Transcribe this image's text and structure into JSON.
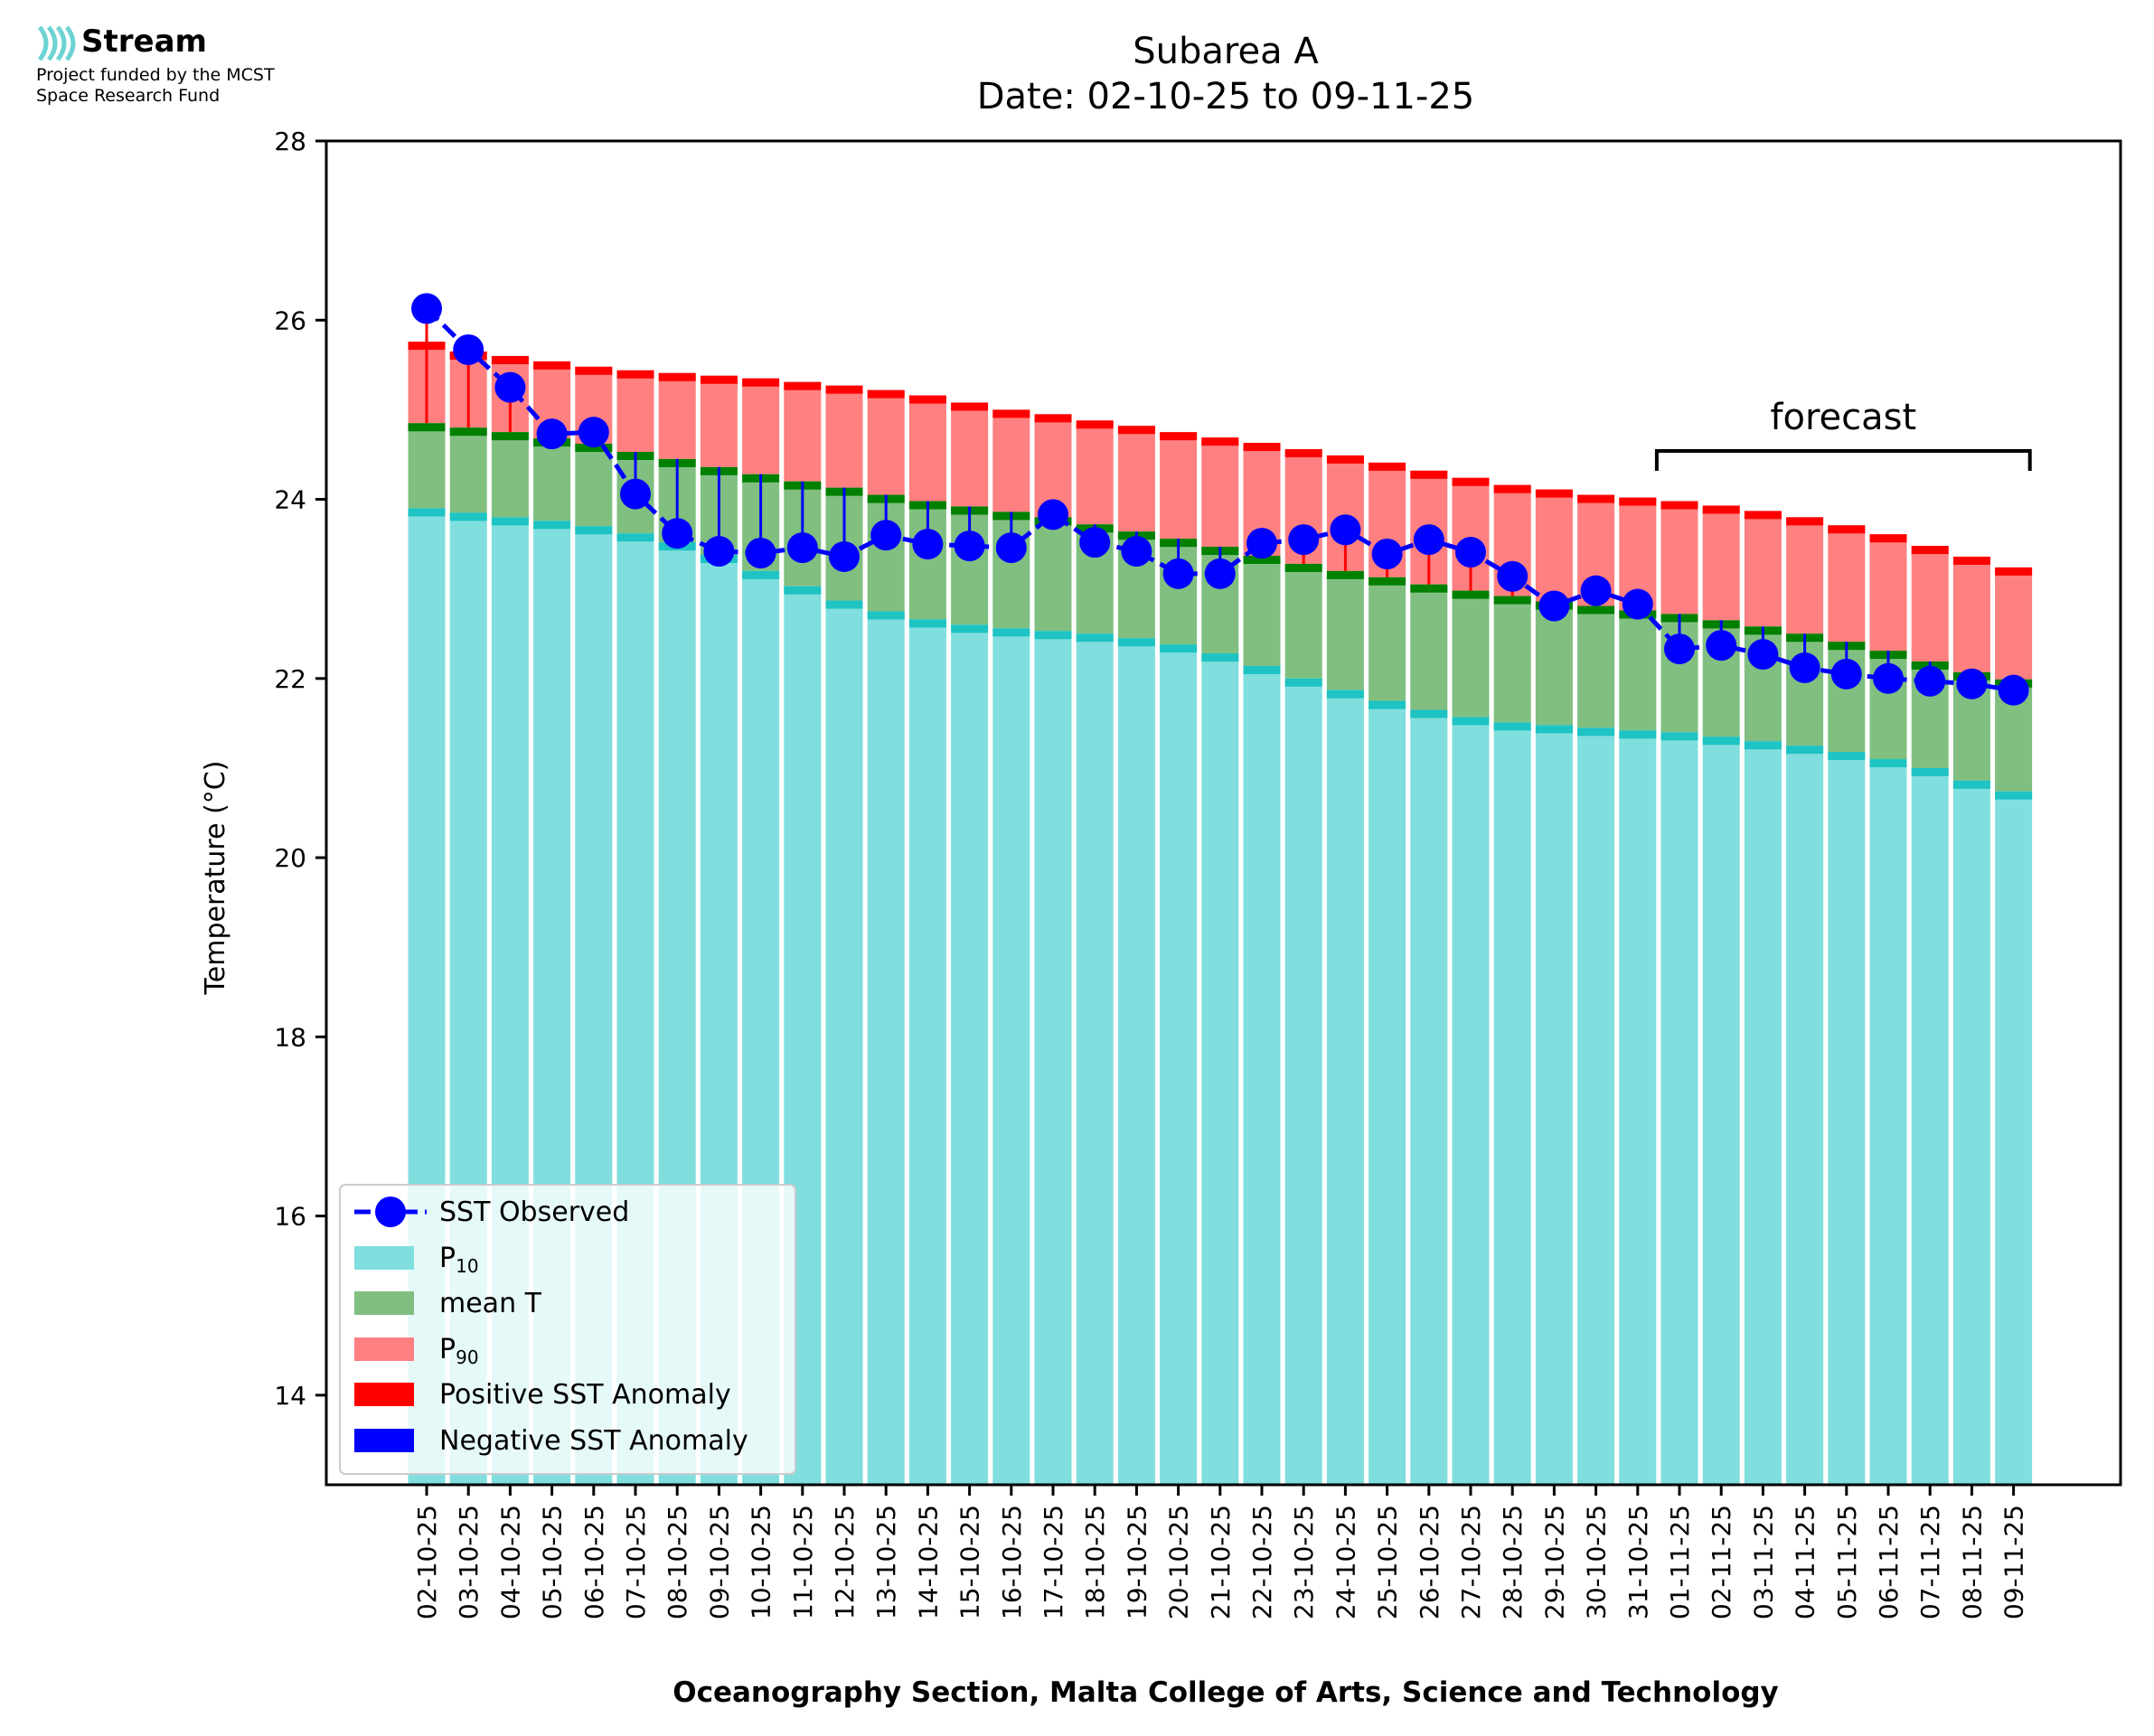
{
  "logo": {
    "brand": "Stream",
    "funded_line1": "Project funded by the MCST",
    "funded_line2": "Space Research Fund"
  },
  "chart_data": {
    "type": "bar",
    "title": "Subarea A",
    "subtitle": "Date: 02-10-25 to 09-11-25",
    "xlabel": "Oceanography Section, Malta College of Arts, Science and Technology",
    "ylabel": "Temperature (°C)",
    "ylim": [
      13,
      28
    ],
    "yticks": [
      14,
      16,
      18,
      20,
      22,
      24,
      26,
      28
    ],
    "grid": false,
    "legend_position": "lower-left",
    "annotation": "forecast",
    "forecast_range": [
      "01-11-25",
      "09-11-25"
    ],
    "categories": [
      "02-10-25",
      "03-10-25",
      "04-10-25",
      "05-10-25",
      "06-10-25",
      "07-10-25",
      "08-10-25",
      "09-10-25",
      "10-10-25",
      "11-10-25",
      "12-10-25",
      "13-10-25",
      "14-10-25",
      "15-10-25",
      "16-10-25",
      "17-10-25",
      "18-10-25",
      "19-10-25",
      "20-10-25",
      "21-10-25",
      "22-10-25",
      "23-10-25",
      "24-10-25",
      "25-10-25",
      "26-10-25",
      "27-10-25",
      "28-10-25",
      "29-10-25",
      "30-10-25",
      "31-10-25",
      "01-11-25",
      "02-11-25",
      "03-11-25",
      "04-11-25",
      "05-11-25",
      "06-11-25",
      "07-11-25",
      "08-11-25",
      "09-11-25"
    ],
    "series": [
      {
        "name": "P10",
        "color": "#80dede",
        "edge_color": "#1ec3c3",
        "values": [
          23.9,
          23.85,
          23.8,
          23.76,
          23.7,
          23.62,
          23.52,
          23.38,
          23.2,
          23.03,
          22.87,
          22.75,
          22.66,
          22.6,
          22.56,
          22.53,
          22.5,
          22.45,
          22.38,
          22.28,
          22.14,
          22.0,
          21.87,
          21.75,
          21.65,
          21.57,
          21.51,
          21.48,
          21.45,
          21.42,
          21.4,
          21.35,
          21.3,
          21.25,
          21.18,
          21.1,
          21.0,
          20.86,
          20.74
        ]
      },
      {
        "name": "mean T",
        "color": "#80bf80",
        "edge_color": "#008000",
        "values": [
          24.85,
          24.8,
          24.75,
          24.68,
          24.62,
          24.53,
          24.45,
          24.36,
          24.28,
          24.2,
          24.13,
          24.05,
          23.98,
          23.92,
          23.86,
          23.8,
          23.72,
          23.64,
          23.56,
          23.47,
          23.37,
          23.28,
          23.2,
          23.13,
          23.05,
          22.98,
          22.92,
          22.86,
          22.81,
          22.76,
          22.72,
          22.65,
          22.58,
          22.5,
          22.41,
          22.31,
          22.19,
          22.07,
          21.99
        ]
      },
      {
        "name": "P90",
        "color": "#ff8080",
        "edge_color": "#ff0000",
        "values": [
          25.76,
          25.65,
          25.6,
          25.54,
          25.48,
          25.44,
          25.41,
          25.38,
          25.35,
          25.31,
          25.27,
          25.22,
          25.16,
          25.08,
          25.0,
          24.95,
          24.88,
          24.82,
          24.75,
          24.69,
          24.63,
          24.56,
          24.49,
          24.41,
          24.32,
          24.24,
          24.16,
          24.11,
          24.05,
          24.02,
          23.98,
          23.93,
          23.87,
          23.8,
          23.71,
          23.61,
          23.48,
          23.36,
          23.24
        ]
      },
      {
        "name": "SST Observed",
        "color": "#0000ff",
        "values": [
          26.13,
          25.67,
          25.25,
          24.73,
          24.75,
          24.06,
          23.62,
          23.42,
          23.4,
          23.46,
          23.36,
          23.6,
          23.5,
          23.48,
          23.46,
          23.83,
          23.52,
          23.42,
          23.17,
          23.17,
          23.51,
          23.55,
          23.66,
          23.39,
          23.55,
          23.41,
          23.14,
          22.81,
          22.98,
          22.83,
          22.33,
          22.37,
          22.27,
          22.12,
          22.05,
          22.0,
          21.97,
          21.94,
          21.87
        ]
      }
    ],
    "legend_entries": [
      "SST Observed",
      "P",
      "mean T",
      "P",
      "Positive SST Anomaly",
      "Negative SST Anomaly"
    ],
    "legend_subscripts": [
      "",
      "10",
      "",
      "90",
      "",
      ""
    ],
    "anomaly_colors": {
      "positive": "#ff0000",
      "negative": "#0000ff"
    }
  }
}
